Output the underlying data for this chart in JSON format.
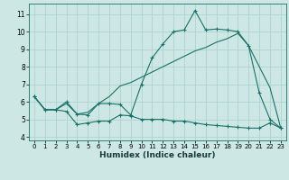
{
  "title": "",
  "xlabel": "Humidex (Indice chaleur)",
  "background_color": "#cde8e4",
  "grid_color": "#aacfcc",
  "line_color": "#1a7068",
  "x_ticks": [
    0,
    1,
    2,
    3,
    4,
    5,
    6,
    7,
    8,
    9,
    10,
    11,
    12,
    13,
    14,
    15,
    16,
    17,
    18,
    19,
    20,
    21,
    22,
    23
  ],
  "y_ticks": [
    4,
    5,
    6,
    7,
    8,
    9,
    10,
    11
  ],
  "ylim": [
    3.8,
    11.6
  ],
  "xlim": [
    -0.5,
    23.5
  ],
  "curve1_x": [
    0,
    1,
    2,
    3,
    4,
    5,
    6,
    7,
    8,
    9,
    10,
    11,
    12,
    13,
    14,
    15,
    16,
    17,
    18,
    19,
    20,
    21,
    22,
    23
  ],
  "curve1_y": [
    6.3,
    5.55,
    5.55,
    5.45,
    4.7,
    4.8,
    4.9,
    4.9,
    5.25,
    5.2,
    5.0,
    5.0,
    5.0,
    4.9,
    4.9,
    4.8,
    4.7,
    4.65,
    4.6,
    4.55,
    4.5,
    4.5,
    4.8,
    4.5
  ],
  "curve2_x": [
    0,
    1,
    2,
    3,
    4,
    5,
    6,
    7,
    8,
    9,
    10,
    11,
    12,
    13,
    14,
    15,
    16,
    17,
    18,
    19,
    20,
    21,
    22,
    23
  ],
  "curve2_y": [
    6.3,
    5.55,
    5.55,
    6.0,
    5.3,
    5.25,
    5.9,
    5.9,
    5.85,
    5.25,
    7.0,
    8.5,
    9.3,
    10.0,
    10.1,
    11.2,
    10.1,
    10.15,
    10.1,
    10.0,
    9.2,
    6.5,
    5.0,
    4.5
  ],
  "curve3_x": [
    0,
    1,
    2,
    3,
    4,
    5,
    6,
    7,
    8,
    9,
    10,
    11,
    12,
    13,
    14,
    15,
    16,
    17,
    18,
    19,
    20,
    21,
    22,
    23
  ],
  "curve3_y": [
    6.3,
    5.55,
    5.55,
    5.9,
    5.3,
    5.4,
    5.9,
    6.3,
    6.9,
    7.1,
    7.4,
    7.7,
    8.0,
    8.3,
    8.6,
    8.9,
    9.1,
    9.4,
    9.6,
    9.9,
    9.2,
    8.0,
    6.8,
    4.5
  ]
}
